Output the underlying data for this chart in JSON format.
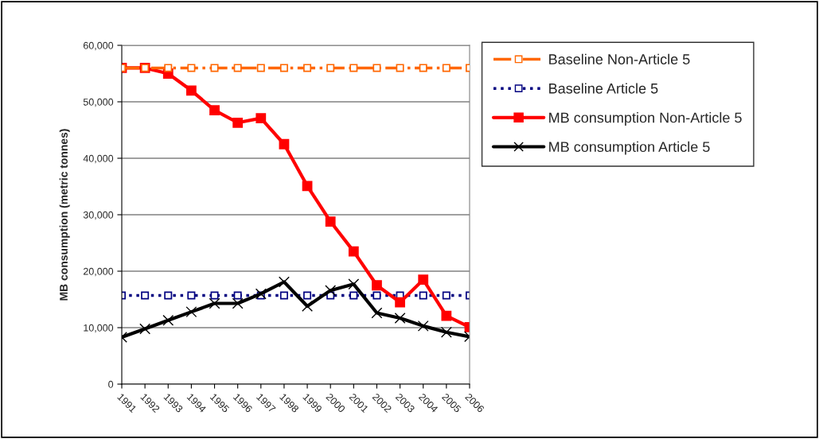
{
  "chart_data": {
    "type": "line",
    "ylabel": "MB consumption (metric tonnes)",
    "categories": [
      "1991",
      "1992",
      "1993",
      "1994",
      "1995",
      "1996",
      "1997",
      "1998",
      "1999",
      "2000",
      "2001",
      "2002",
      "2003",
      "2004",
      "2005",
      "2006"
    ],
    "series": [
      {
        "name": "Baseline Non-Article 5",
        "color": "#ff6600",
        "marker": "square",
        "line_style": "dashdot",
        "values": [
          56000,
          56000,
          56000,
          56000,
          56000,
          56000,
          56000,
          56000,
          56000,
          56000,
          56000,
          56000,
          56000,
          56000,
          56000,
          56000
        ]
      },
      {
        "name": "Baseline Article 5",
        "color": "#000080",
        "marker": "square",
        "line_style": "dotted",
        "values": [
          15700,
          15700,
          15700,
          15700,
          15700,
          15700,
          15700,
          15700,
          15700,
          15700,
          15700,
          15700,
          15700,
          15700,
          15700,
          15700
        ]
      },
      {
        "name": "MB consumption Non-Article 5",
        "color": "#ff0000",
        "marker": "square",
        "line_style": "solid",
        "values": [
          56000,
          56000,
          55000,
          52000,
          48500,
          46300,
          47100,
          42500,
          35100,
          28800,
          23500,
          17500,
          14500,
          18500,
          12100,
          10100
        ]
      },
      {
        "name": "MB consumption Article 5",
        "color": "#000000",
        "marker": "cross",
        "line_style": "solid",
        "values": [
          8300,
          9800,
          11300,
          12800,
          14300,
          14300,
          16000,
          18100,
          13800,
          16600,
          17700,
          12600,
          11700,
          10300,
          9200,
          8400
        ]
      }
    ],
    "ylim": [
      0,
      60000
    ],
    "yticks": [
      {
        "value": 0,
        "label": "0"
      },
      {
        "value": 10000,
        "label": "10,000"
      },
      {
        "value": 20000,
        "label": "20,000"
      },
      {
        "value": 30000,
        "label": "30,000"
      },
      {
        "value": 40000,
        "label": "40,000"
      },
      {
        "value": 50000,
        "label": "50,000"
      },
      {
        "value": 60000,
        "label": "60,000"
      }
    ],
    "grid": "y",
    "legend": "right"
  }
}
